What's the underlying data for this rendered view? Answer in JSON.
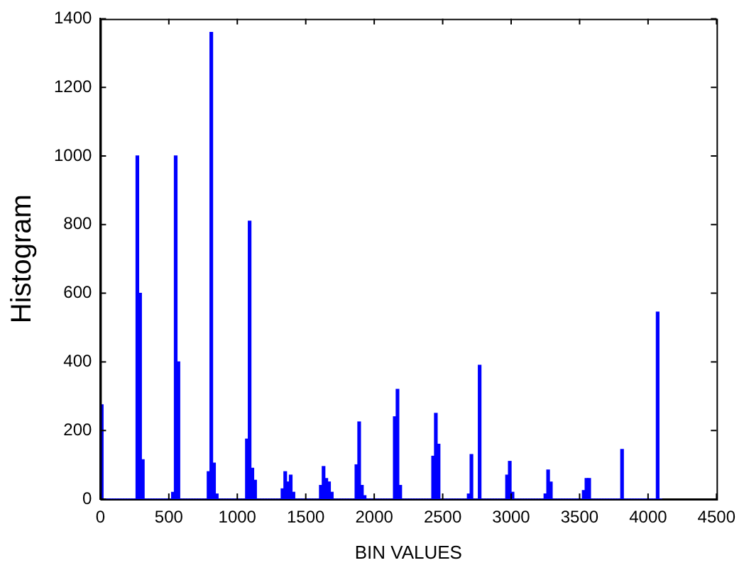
{
  "chart_data": {
    "type": "histogram",
    "xlabel": "BIN VALUES",
    "ylabel": "Histogram",
    "color": "#0000ff",
    "grid": false,
    "xlim": [
      0,
      4500
    ],
    "xticks": [
      0,
      500,
      1000,
      1500,
      2000,
      2500,
      3000,
      3500,
      4000,
      4500
    ],
    "ylim": [
      0,
      1400
    ],
    "yticks": [
      0,
      200,
      400,
      600,
      800,
      1000,
      1200,
      1400
    ],
    "bins": [
      0,
      20,
      40,
      60,
      80,
      100,
      120,
      140,
      160,
      180,
      200,
      220,
      240,
      260,
      280,
      300,
      320,
      340,
      360,
      380,
      400,
      420,
      440,
      460,
      480,
      500,
      520,
      540,
      560,
      580,
      600,
      620,
      640,
      660,
      680,
      700,
      720,
      740,
      760,
      780,
      800,
      820,
      840,
      860,
      880,
      900,
      920,
      940,
      960,
      980,
      1000,
      1020,
      1040,
      1060,
      1080,
      1100,
      1120,
      1140,
      1160,
      1180,
      1200,
      1220,
      1240,
      1260,
      1280,
      1300,
      1320,
      1340,
      1360,
      1380,
      1400,
      1420,
      1440,
      1460,
      1480,
      1500,
      1520,
      1540,
      1560,
      1580,
      1600,
      1620,
      1640,
      1660,
      1680,
      1700,
      1720,
      1740,
      1760,
      1780,
      1800,
      1820,
      1840,
      1860,
      1880,
      1900,
      1920,
      1940,
      1960,
      1980,
      2000,
      2020,
      2040,
      2060,
      2080,
      2100,
      2120,
      2140,
      2160,
      2180,
      2200,
      2220,
      2240,
      2260,
      2280,
      2300,
      2320,
      2340,
      2360,
      2380,
      2400,
      2420,
      2440,
      2460,
      2480,
      2500,
      2520,
      2540,
      2560,
      2580,
      2600,
      2620,
      2640,
      2660,
      2680,
      2700,
      2720,
      2740,
      2760,
      2780,
      2800,
      2820,
      2840,
      2860,
      2880,
      2900,
      2920,
      2940,
      2960,
      2980,
      3000,
      3020,
      3040,
      3060,
      3080,
      3100,
      3120,
      3140,
      3160,
      3180,
      3200,
      3220,
      3240,
      3260,
      3280,
      3300,
      3320,
      3340,
      3360,
      3380,
      3400,
      3420,
      3440,
      3460,
      3480,
      3500,
      3520,
      3540,
      3560,
      3580,
      3600,
      3620,
      3640,
      3660,
      3680,
      3700,
      3720,
      3740,
      3760,
      3780,
      3800,
      3820,
      3840,
      3860,
      3880,
      3900,
      3920,
      3940,
      3960,
      3980,
      4000,
      4020,
      4040,
      4060,
      4080,
      4100
    ],
    "values": [
      275,
      0,
      0,
      0,
      0,
      0,
      0,
      0,
      0,
      0,
      0,
      0,
      0,
      1000,
      600,
      115,
      0,
      0,
      0,
      0,
      0,
      0,
      0,
      0,
      0,
      0,
      20,
      1000,
      400,
      0,
      0,
      0,
      0,
      0,
      0,
      0,
      0,
      0,
      0,
      80,
      1360,
      105,
      15,
      0,
      0,
      0,
      0,
      0,
      0,
      0,
      0,
      0,
      0,
      175,
      810,
      90,
      55,
      0,
      0,
      0,
      0,
      0,
      0,
      0,
      0,
      0,
      30,
      80,
      50,
      70,
      20,
      0,
      0,
      0,
      0,
      0,
      0,
      0,
      0,
      0,
      40,
      95,
      60,
      50,
      20,
      0,
      0,
      0,
      0,
      0,
      0,
      0,
      0,
      100,
      225,
      40,
      10,
      0,
      0,
      0,
      0,
      0,
      0,
      0,
      0,
      0,
      0,
      240,
      320,
      40,
      0,
      0,
      0,
      0,
      0,
      0,
      0,
      0,
      0,
      0,
      0,
      125,
      250,
      160,
      0,
      0,
      0,
      0,
      0,
      0,
      0,
      0,
      0,
      0,
      15,
      130,
      0,
      0,
      390,
      0,
      0,
      0,
      0,
      0,
      0,
      0,
      0,
      0,
      70,
      110,
      20,
      0,
      0,
      0,
      0,
      0,
      0,
      0,
      0,
      0,
      0,
      0,
      15,
      85,
      50,
      0,
      0,
      0,
      0,
      0,
      0,
      0,
      0,
      0,
      0,
      0,
      25,
      60,
      60,
      0,
      0,
      0,
      0,
      0,
      0,
      0,
      0,
      0,
      0,
      0,
      145,
      0,
      0,
      0,
      0,
      0,
      0,
      0,
      0,
      0,
      0,
      0,
      0,
      545,
      0
    ]
  }
}
